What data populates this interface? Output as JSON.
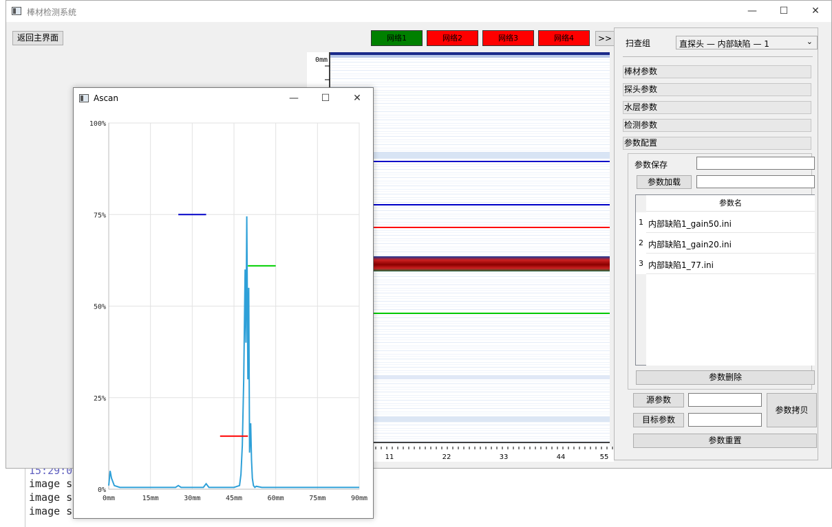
{
  "console": {
    "lines": [
      {
        "text": "15:29:0                                               ..."
      },
      {
        "text": "image s"
      },
      {
        "text": "image s"
      },
      {
        "text": "image s"
      }
    ]
  },
  "main_window": {
    "title": "棒材检测系统",
    "controls": {
      "minimize": "—",
      "maximize": "☐",
      "close": "✕"
    },
    "back_button": "返回主界面",
    "network_buttons": [
      {
        "label": "网络1",
        "status_color": "#008000"
      },
      {
        "label": "网络2",
        "status_color": "#ff0000"
      },
      {
        "label": "网络3",
        "status_color": "#ff0000"
      },
      {
        "label": "网络4",
        "status_color": "#ff0000"
      }
    ],
    "more_button": ">>"
  },
  "bscan": {
    "depth_label": "0mm",
    "x_ticks": [
      "11",
      "22",
      "33",
      "44",
      "55"
    ],
    "gate_lines": [
      {
        "color": "#0000c8"
      },
      {
        "color": "#0000c8"
      },
      {
        "color": "#ff0000"
      },
      {
        "color": "#00c800"
      }
    ]
  },
  "right_panel": {
    "scan_group_label": "扫查组",
    "scan_group_value": "直探头 — 内部缺陷 — 1",
    "sections": [
      "棒材参数",
      "探头参数",
      "水层参数",
      "检测参数",
      "参数配置"
    ],
    "param_save_label": "参数保存",
    "param_save_value": "",
    "param_load_button": "参数加载",
    "param_load_value": "",
    "table": {
      "header": "参数名",
      "rows": [
        {
          "index": "1",
          "name": "内部缺陷1_gain50.ini"
        },
        {
          "index": "2",
          "name": "内部缺陷1_gain20.ini"
        },
        {
          "index": "3",
          "name": "内部缺陷1_77.ini"
        }
      ]
    },
    "delete_button": "参数删除",
    "source_param_button": "源参数",
    "source_param_value": "",
    "target_param_button": "目标参数",
    "target_param_value": "",
    "copy_button": "参数拷贝",
    "reset_button": "参数重置"
  },
  "ascan_window": {
    "title": "Ascan",
    "controls": {
      "minimize": "—",
      "maximize": "☐",
      "close": "✕"
    }
  },
  "chart_data": {
    "type": "line",
    "title": "",
    "xlabel": "",
    "ylabel": "",
    "x_ticks": [
      "0mm",
      "15mm",
      "30mm",
      "45mm",
      "60mm",
      "75mm",
      "90mm"
    ],
    "y_ticks": [
      "0%",
      "25%",
      "50%",
      "75%",
      "100%"
    ],
    "xlim": [
      0,
      90
    ],
    "ylim": [
      0,
      100
    ],
    "grid": true,
    "series": [
      {
        "color": "#2ea0d8",
        "x": [
          0,
          0.5,
          1,
          2,
          4,
          6,
          10,
          15,
          20,
          24,
          25,
          26,
          30,
          34,
          35,
          36,
          40,
          45,
          47,
          47.5,
          48,
          48.5,
          49,
          49.3,
          49.6,
          50,
          50.3,
          50.6,
          51,
          51.3,
          51.6,
          52,
          52.5,
          53,
          55,
          60,
          65,
          70,
          75,
          80,
          85,
          90
        ],
        "y": [
          1,
          5,
          3,
          1,
          0.5,
          0.5,
          0.5,
          0.5,
          0.5,
          0.5,
          1,
          0.5,
          0.5,
          0.5,
          1.5,
          0.5,
          0.5,
          0.5,
          1,
          4,
          12,
          30,
          60,
          40,
          74.5,
          30,
          55,
          10,
          18,
          8,
          3,
          1,
          0.5,
          0.8,
          0.5,
          0.5,
          0.5,
          0.5,
          0.5,
          0.5,
          0.5,
          0.5
        ]
      }
    ],
    "gates": [
      {
        "color": "#0000c8",
        "x_start": 25,
        "x_end": 35,
        "y": 75
      },
      {
        "color": "#00d000",
        "x_start": 50,
        "x_end": 60,
        "y": 61
      },
      {
        "color": "#ff0000",
        "x_start": 40,
        "x_end": 50,
        "y": 14.5
      }
    ]
  }
}
